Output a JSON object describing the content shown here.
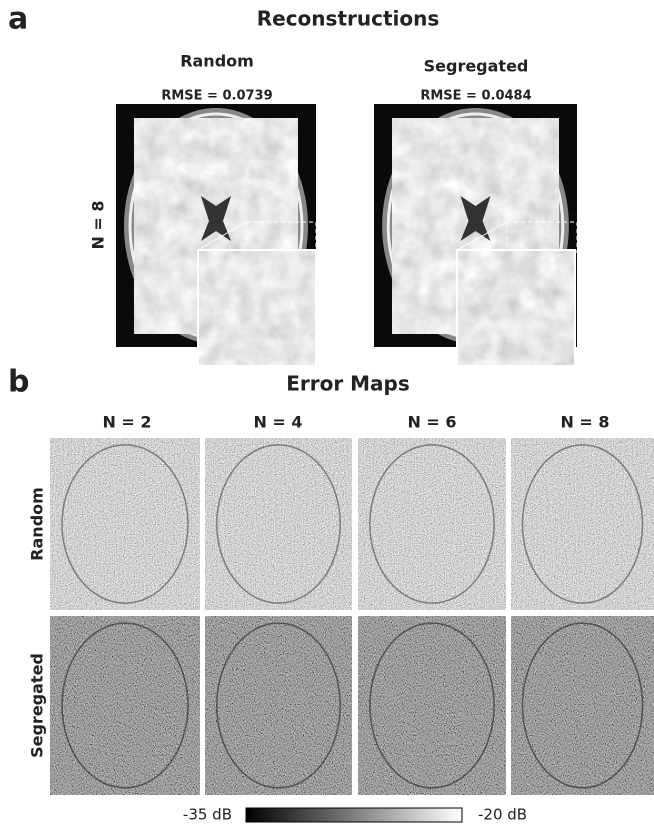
{
  "panel_a": {
    "label": "a",
    "title": "Reconstructions",
    "row_label": "N = 8",
    "columns": [
      {
        "title": "Random",
        "rmse": "RMSE = 0.0739"
      },
      {
        "title": "Segregated",
        "rmse": "RMSE = 0.0484"
      }
    ]
  },
  "panel_b": {
    "label": "b",
    "title": "Error Maps",
    "columns": [
      "N = 2",
      "N = 4",
      "N = 6",
      "N = 8"
    ],
    "rows": [
      "Random",
      "Segregated"
    ],
    "colorbar": {
      "min_label": "-35 dB",
      "max_label": "-20 dB"
    }
  }
}
